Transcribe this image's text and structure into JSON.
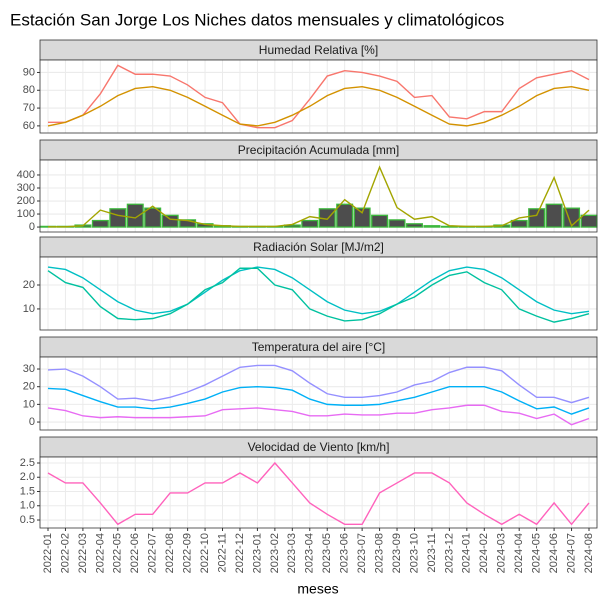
{
  "title": "Estación San Jorge Los Niches datos mensuales y climatológicos",
  "x_label": "meses",
  "categories": [
    "2022-01",
    "2022-02",
    "2022-03",
    "2022-04",
    "2022-05",
    "2022-06",
    "2022-07",
    "2022-08",
    "2022-09",
    "2022-10",
    "2022-11",
    "2022-12",
    "2023-01",
    "2023-02",
    "2023-03",
    "2023-04",
    "2023-05",
    "2023-06",
    "2023-07",
    "2023-08",
    "2023-09",
    "2023-10",
    "2023-11",
    "2023-12",
    "2024-01",
    "2024-02",
    "2024-03",
    "2024-04",
    "2024-05",
    "2024-06",
    "2024-07",
    "2024-08"
  ],
  "chart_data": [
    {
      "type": "line",
      "title": "Humedad Relativa [%]",
      "ylim": [
        56,
        97
      ],
      "yticks": [
        60,
        70,
        80,
        90
      ],
      "grid": true,
      "series": [
        {
          "type": "line",
          "color": "#F8766D",
          "values": [
            62,
            62,
            66,
            78,
            94,
            89,
            89,
            88,
            83,
            76,
            73,
            61,
            59,
            59,
            63,
            75,
            88,
            91,
            90,
            88,
            85,
            76,
            77,
            65,
            64,
            68,
            68,
            81,
            87,
            89,
            91,
            86
          ]
        },
        {
          "type": "line",
          "color": "#D39200",
          "values": [
            60,
            62,
            66,
            71,
            77,
            81,
            82,
            80,
            76,
            71,
            66,
            61,
            60,
            62,
            66,
            71,
            77,
            81,
            82,
            80,
            76,
            71,
            66,
            61,
            60,
            62,
            66,
            71,
            77,
            81,
            82,
            80
          ]
        }
      ]
    },
    {
      "type": "line",
      "title": "Precipitación Acumulada [mm]",
      "ylim": [
        -38,
        515
      ],
      "yticks": [
        0,
        100,
        200,
        300,
        400
      ],
      "grid": true,
      "series": [
        {
          "type": "bar",
          "color": "#4d4d4d",
          "edge": "#3DB83D",
          "values": [
            5,
            5,
            15,
            50,
            140,
            175,
            145,
            90,
            55,
            25,
            10,
            5,
            5,
            5,
            15,
            50,
            140,
            175,
            145,
            90,
            55,
            25,
            10,
            5,
            5,
            5,
            15,
            50,
            140,
            175,
            145,
            90
          ]
        },
        {
          "type": "line",
          "color": "#A3A500",
          "values": [
            2,
            2,
            10,
            130,
            90,
            70,
            160,
            60,
            50,
            20,
            10,
            5,
            5,
            5,
            20,
            80,
            60,
            210,
            110,
            460,
            150,
            60,
            80,
            10,
            5,
            5,
            10,
            70,
            90,
            380,
            10,
            130
          ]
        }
      ]
    },
    {
      "type": "line",
      "title": "Radiación Solar [MJ/m2]",
      "ylim": [
        1.2,
        31.7
      ],
      "yticks": [
        10,
        20
      ],
      "grid": true,
      "series": [
        {
          "type": "line",
          "color": "#00BFC4",
          "values": [
            27.5,
            26.5,
            23,
            18,
            13,
            9.5,
            8,
            9,
            12,
            17,
            22,
            26,
            27.5,
            26.5,
            23,
            18,
            13,
            9.5,
            8,
            9,
            12,
            17,
            22,
            26,
            27.5,
            26.5,
            23,
            18,
            13,
            9.5,
            8,
            9
          ]
        },
        {
          "type": "line",
          "color": "#00C19F",
          "values": [
            26,
            21,
            19,
            11,
            6,
            5.5,
            6,
            8,
            12,
            18,
            21,
            27,
            27,
            20,
            18,
            10,
            7,
            5,
            5.5,
            8,
            12,
            15,
            20,
            24,
            25.5,
            21,
            18,
            10,
            7,
            4.5,
            6,
            8
          ]
        }
      ]
    },
    {
      "type": "line",
      "title": "Temperatura del aire [°C]",
      "ylim": [
        -4.5,
        36.8
      ],
      "yticks": [
        0,
        10,
        20,
        30
      ],
      "grid": true,
      "series": [
        {
          "type": "line",
          "color": "#9590FF",
          "values": [
            29.5,
            30,
            26,
            20,
            13,
            13.5,
            12,
            14,
            17,
            21,
            26,
            31,
            32,
            32,
            29,
            22,
            16,
            14,
            14,
            15,
            17,
            21,
            23,
            28,
            31,
            31,
            29,
            21,
            14,
            14,
            11,
            14
          ]
        },
        {
          "type": "line",
          "color": "#00B0F6",
          "values": [
            19,
            18.5,
            15,
            11.5,
            8.5,
            8.5,
            7.5,
            8.5,
            10.5,
            13,
            17,
            19.5,
            20,
            19.5,
            18,
            13,
            10,
            9.5,
            9.5,
            10,
            12,
            14,
            17,
            20,
            20,
            20,
            17,
            12,
            7.5,
            8.5,
            4.5,
            8
          ]
        },
        {
          "type": "line",
          "color": "#E76BF3",
          "values": [
            8,
            6.5,
            3.5,
            2.5,
            3,
            2.5,
            2.5,
            2.5,
            3,
            3.5,
            7,
            7.5,
            8,
            7,
            6,
            3.5,
            3.5,
            4.5,
            4,
            4,
            5,
            5,
            7,
            8,
            9.5,
            9.5,
            6,
            5,
            2,
            4.5,
            -1.5,
            2
          ]
        }
      ]
    },
    {
      "type": "line",
      "title": "Velocidad de Viento [km/h]",
      "ylim": [
        0.22,
        2.71
      ],
      "yticks": [
        0.5,
        {
          "value": 1,
          "label": "1.0"
        },
        1.5,
        {
          "value": 2,
          "label": "2.0"
        },
        2.5
      ],
      "grid": true,
      "series": [
        {
          "type": "line",
          "color": "#FF62BC",
          "values": [
            2.15,
            1.8,
            1.8,
            1.1,
            0.35,
            0.7,
            0.7,
            1.45,
            1.45,
            1.8,
            1.8,
            2.15,
            1.8,
            2.5,
            1.8,
            1.1,
            0.7,
            0.35,
            0.35,
            1.45,
            1.8,
            2.15,
            2.15,
            1.8,
            1.1,
            0.7,
            0.35,
            0.7,
            0.35,
            1.1,
            0.35,
            1.1
          ]
        }
      ]
    }
  ]
}
